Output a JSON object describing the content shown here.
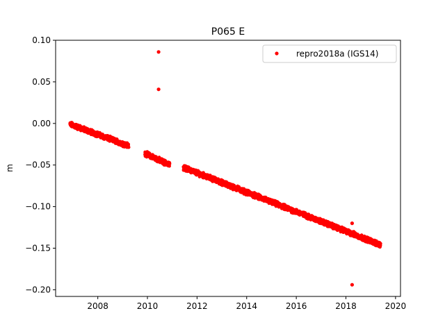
{
  "chart_data": {
    "type": "scatter",
    "title": "P065 E",
    "xlabel": "",
    "ylabel": "m",
    "xlim": [
      2006.3,
      2020.2
    ],
    "ylim": [
      -0.208,
      0.1
    ],
    "x_ticks": [
      2008,
      2010,
      2012,
      2014,
      2016,
      2018,
      2020
    ],
    "x_tick_labels": [
      "2008",
      "2010",
      "2012",
      "2014",
      "2016",
      "2018",
      "2020"
    ],
    "y_ticks": [
      0.1,
      0.05,
      0.0,
      -0.05,
      -0.1,
      -0.15,
      -0.2
    ],
    "y_tick_labels": [
      "0.10",
      "0.05",
      "0.00",
      "−0.05",
      "−0.10",
      "−0.15",
      "−0.20"
    ],
    "legend_position": "top-right",
    "grid": false,
    "series": [
      {
        "name": "repro2018a (IGS14)",
        "color": "#ff0000",
        "marker": "dot",
        "trend_segments": [
          {
            "x_start": 2006.88,
            "x_end": 2009.25,
            "y_start": -0.001,
            "y_end": -0.027
          },
          {
            "x_start": 2009.9,
            "x_end": 2010.9,
            "y_start": -0.036,
            "y_end": -0.05
          },
          {
            "x_start": 2011.45,
            "x_end": 2019.4,
            "y_start": -0.053,
            "y_end": -0.146
          }
        ],
        "outliers": [
          {
            "x": 2010.45,
            "y": 0.086
          },
          {
            "x": 2010.45,
            "y": 0.041
          },
          {
            "x": 2018.25,
            "y": -0.12
          },
          {
            "x": 2018.25,
            "y": -0.194
          }
        ]
      }
    ]
  }
}
